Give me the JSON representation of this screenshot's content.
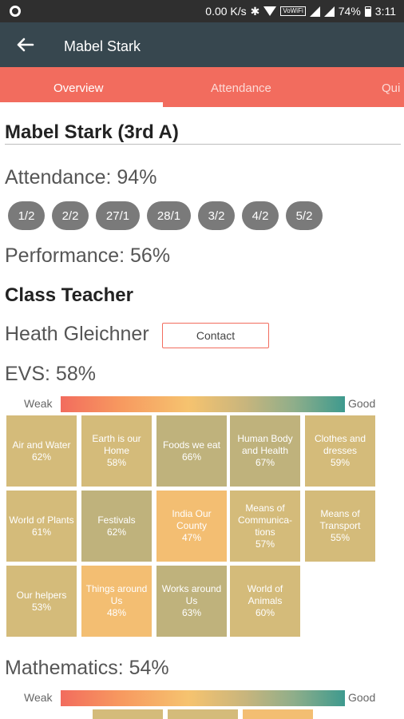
{
  "status_bar": {
    "speed": "0.00 K/s",
    "vowifi": "VoWiFi",
    "battery": "74%",
    "time": "3:11"
  },
  "app_bar": {
    "title": "Mabel Stark"
  },
  "tabs": [
    {
      "label": "Overview",
      "active": true
    },
    {
      "label": "Attendance",
      "active": false
    },
    {
      "label": "Qui",
      "active": false
    }
  ],
  "student": {
    "heading": "Mabel Stark (3rd A)"
  },
  "attendance": {
    "label": "Attendance: 94%",
    "dates": [
      "1/2",
      "2/2",
      "27/1",
      "28/1",
      "3/2",
      "4/2",
      "5/2"
    ]
  },
  "performance": {
    "label": "Performance: 56%"
  },
  "class_teacher": {
    "heading": "Class Teacher",
    "name": "Heath Gleichner",
    "contact_label": "Contact"
  },
  "scale": {
    "weak": "Weak",
    "good": "Good"
  },
  "evs": {
    "label": "EVS: 58%",
    "topics": [
      {
        "name": "Air and Water",
        "pct": "62%"
      },
      {
        "name": "Earth is our Home",
        "pct": "58%"
      },
      {
        "name": "Foods we eat",
        "pct": "66%"
      },
      {
        "name": "Human Body and Health",
        "pct": "67%"
      },
      {
        "name": "Clothes and dresses",
        "pct": "59%"
      },
      {
        "name": "World of Plants",
        "pct": "61%"
      },
      {
        "name": "Festivals",
        "pct": "62%"
      },
      {
        "name": "India Our County",
        "pct": "47%"
      },
      {
        "name": "Means of Communica-tions",
        "pct": "57%"
      },
      {
        "name": "Means of Transport",
        "pct": "55%"
      },
      {
        "name": "Our helpers",
        "pct": "53%"
      },
      {
        "name": "Things around Us",
        "pct": "48%"
      },
      {
        "name": "Works around Us",
        "pct": "63%"
      },
      {
        "name": "World of Animals",
        "pct": "60%"
      }
    ]
  },
  "mathematics": {
    "label": "Mathematics: 54%"
  },
  "colors": {
    "accent": "#f26c5e",
    "app_bar": "#37474f",
    "chip": "#7a7a7a"
  }
}
